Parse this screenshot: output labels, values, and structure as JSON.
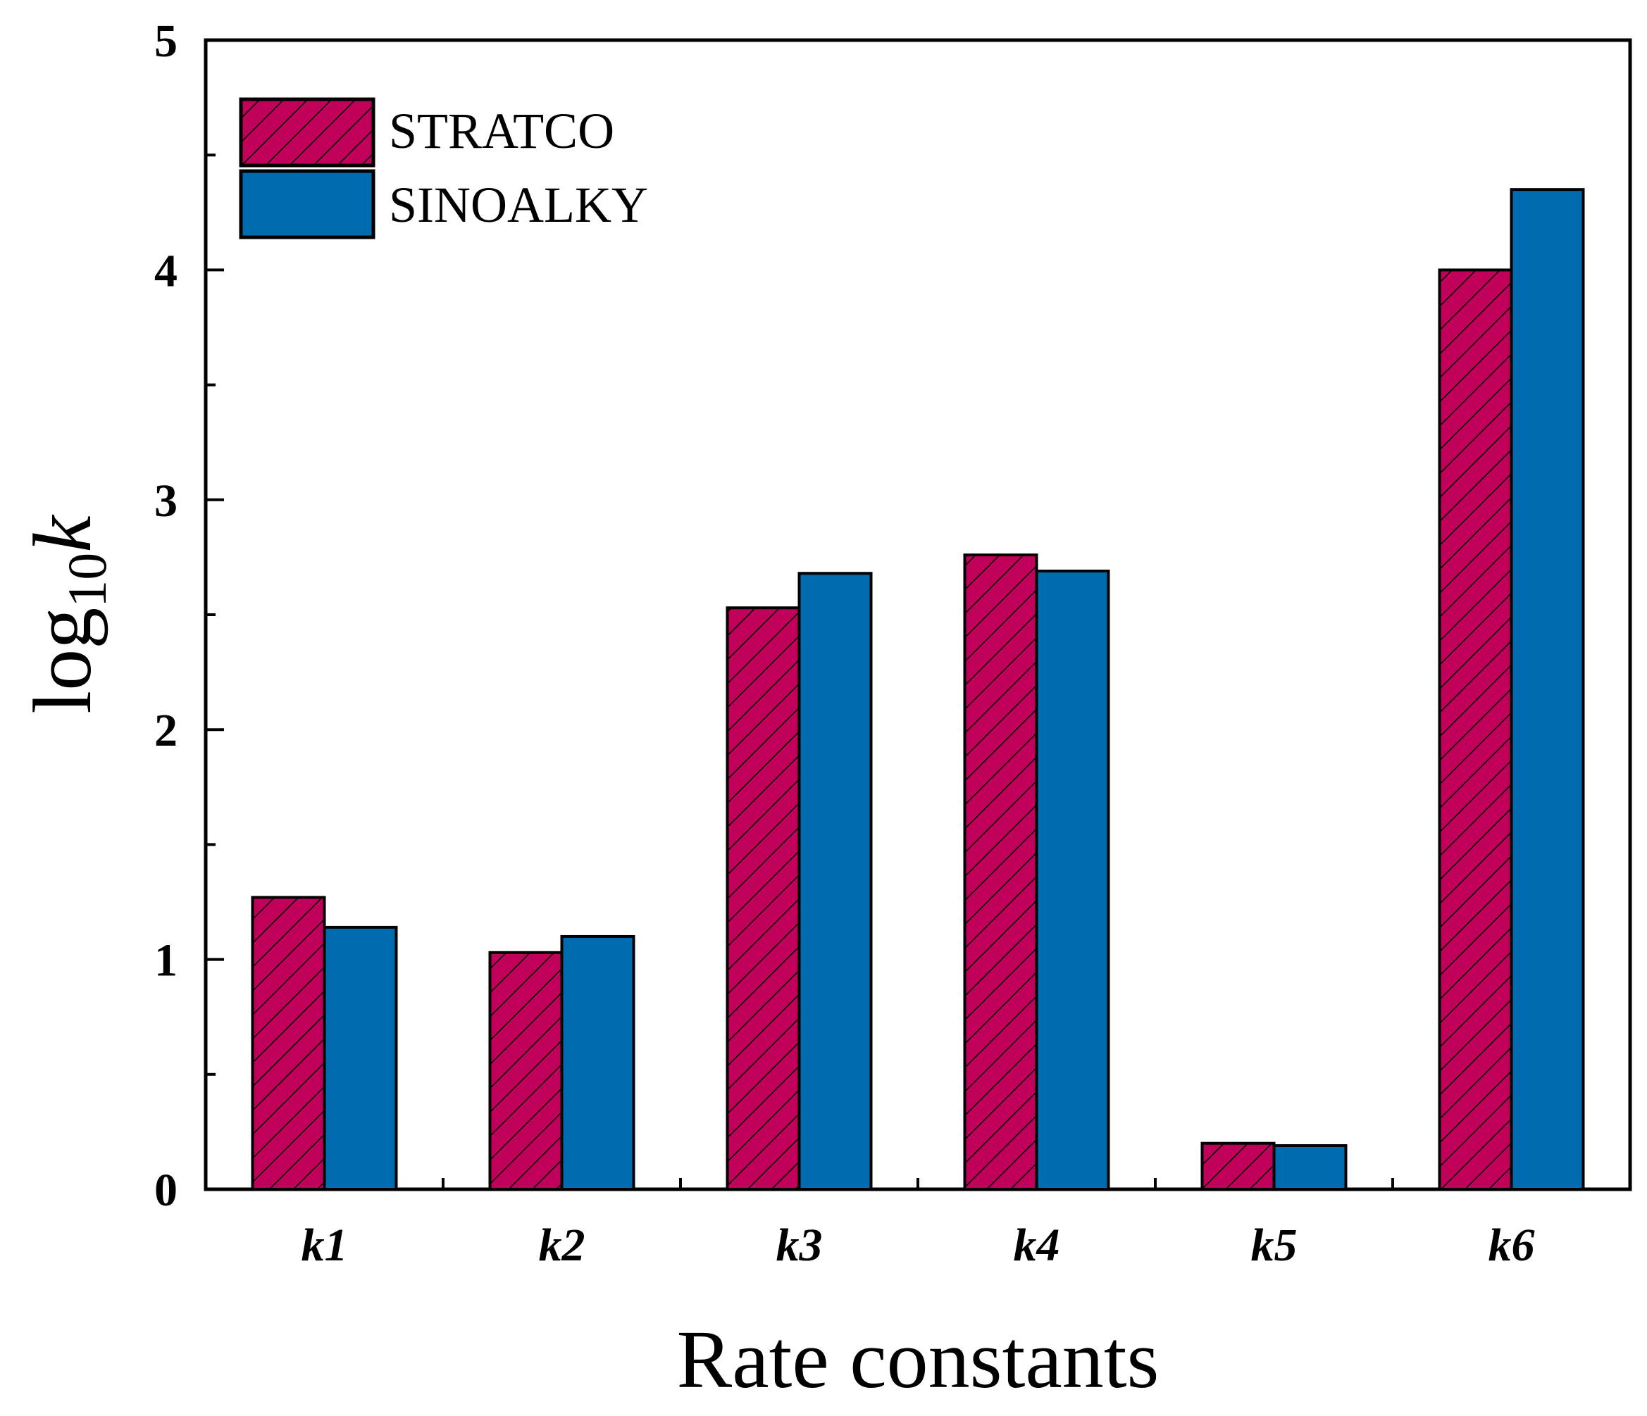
{
  "chart_data": {
    "type": "bar",
    "title": "",
    "xlabel": "Rate constants",
    "ylabel": {
      "base": "log",
      "subscript": "10",
      "variable": "k"
    },
    "ylim": [
      0,
      5
    ],
    "yticks": [
      "0",
      "1",
      "2",
      "3",
      "4",
      "5"
    ],
    "categories": [
      "k1",
      "k2",
      "k3",
      "k4",
      "k5",
      "k6"
    ],
    "series": [
      {
        "name": "STRATCO",
        "color": "#c0005a",
        "pattern": "hatch",
        "values": [
          1.27,
          1.03,
          2.53,
          2.76,
          0.2,
          4.0
        ]
      },
      {
        "name": "SINOALKY",
        "color": "#006cb0",
        "pattern": "solid",
        "values": [
          1.14,
          1.1,
          2.68,
          2.69,
          0.19,
          4.35
        ]
      }
    ],
    "legend": "top-left",
    "grid": false
  }
}
